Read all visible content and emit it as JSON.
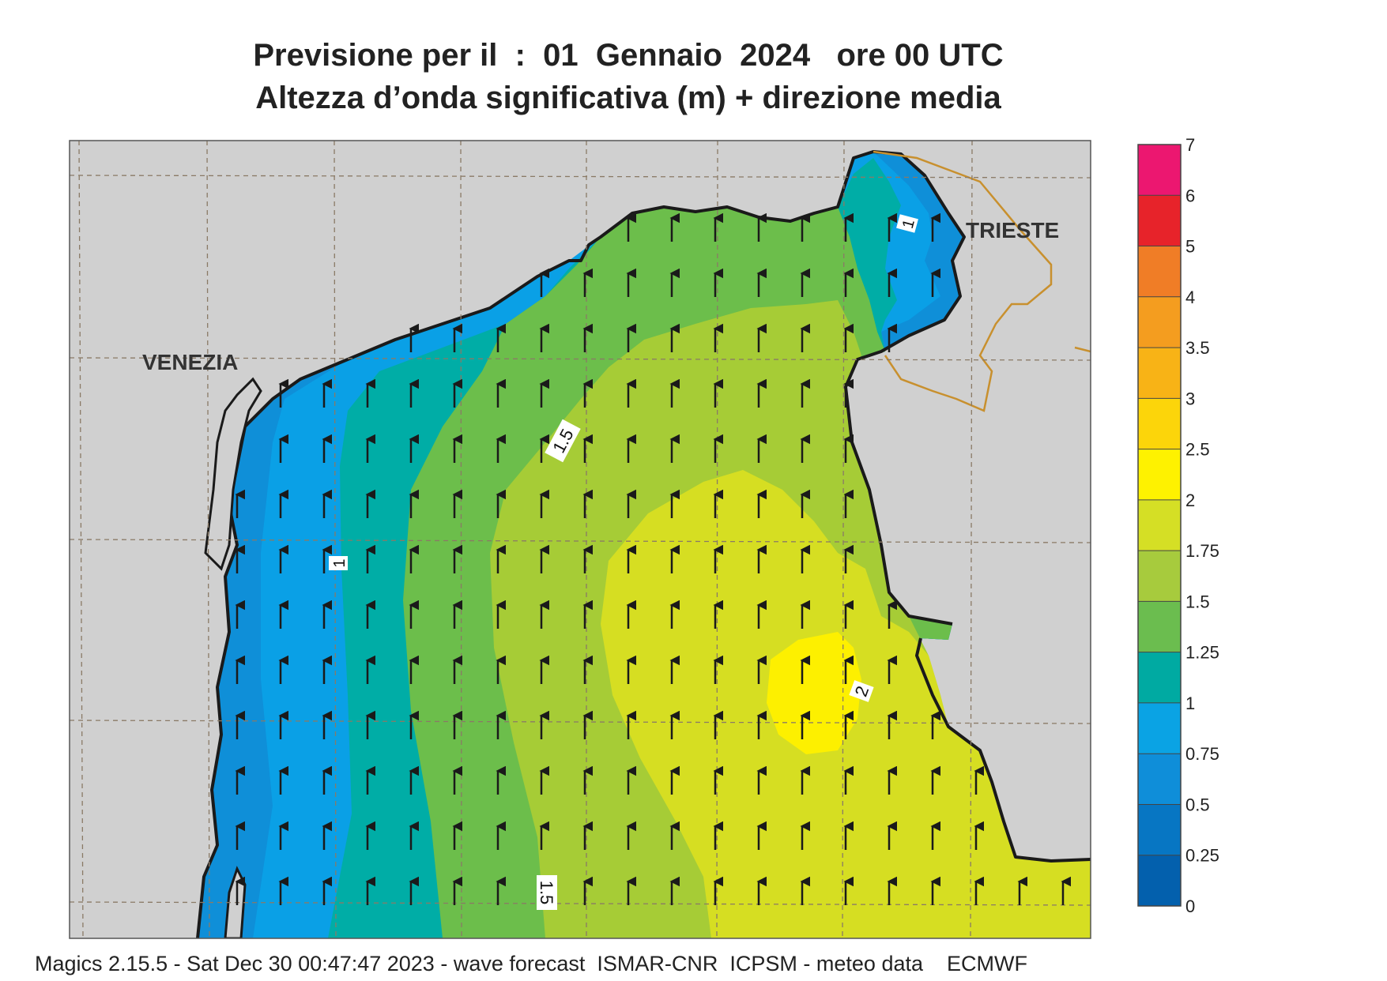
{
  "header": {
    "title_line1": "Previsione per il  :  01  Gennaio  2024   ore 00 UTC",
    "title_line2": "Altezza d’onda significativa (m) + direzione media"
  },
  "map": {
    "city_labels": [
      "VENEZIA",
      "TRIESTE"
    ],
    "contour_labels": [
      "1",
      "1",
      "1.5",
      "2",
      "1.5"
    ],
    "sea_fill": {
      "lt_075": "#0f8fd8",
      "0.75-1": "#0aa0e6",
      "1-1.25": "#00ada6",
      "1.25-1.5": "#6cbe4b",
      "1.5-1.75": "#a6cc36",
      "1.75-2": "#d6de22",
      "2-2.5": "#fdf000"
    },
    "land_color": "#d0d0d0",
    "border_color": "#c8902e",
    "arrow_direction": "north",
    "grid": true
  },
  "colorbar": {
    "labels": [
      "7",
      "6",
      "5",
      "4",
      "3.5",
      "3",
      "2.5",
      "2",
      "1.75",
      "1.5",
      "1.25",
      "1",
      "0.75",
      "0.5",
      "0.25",
      "0"
    ],
    "colors": [
      "#ec1770",
      "#e7232a",
      "#f07d26",
      "#f49d1f",
      "#f8b316",
      "#fcd50a",
      "#fef200",
      "#d5df25",
      "#a7cb3d",
      "#6bbd4f",
      "#00aaa2",
      "#0aa3e4",
      "#0f8ed9",
      "#0776c3",
      "#0360ad"
    ]
  },
  "footer": "Magics 2.15.5 - Sat Dec 30 00:47:47 2023 - wave forecast  ISMAR-CNR  ICPSM - meteo data    ECMWF"
}
